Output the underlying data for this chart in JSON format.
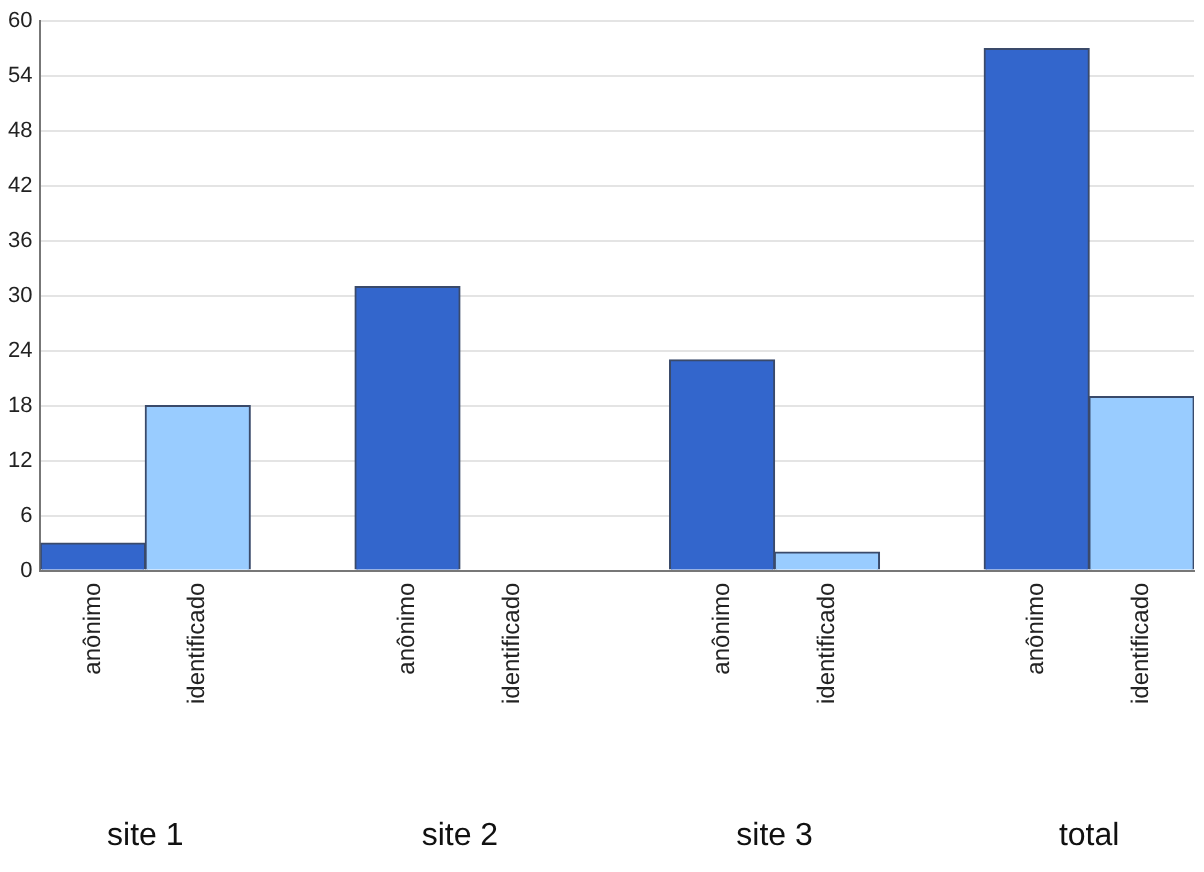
{
  "chart_data": {
    "type": "bar",
    "categories": [
      "anônimo",
      "identificado",
      null,
      "anônimo",
      "identificado",
      null,
      "anônimo",
      "identificado",
      null,
      "anônimo",
      "identificado"
    ],
    "values": [
      3,
      18,
      null,
      31,
      0,
      null,
      23,
      2,
      null,
      57,
      19
    ],
    "colors": [
      "#3366cc",
      "#99ccff",
      null,
      "#3366cc",
      "#99ccff",
      null,
      "#3366cc",
      "#99ccff",
      null,
      "#3366cc",
      "#99ccff"
    ],
    "ylim": [
      0,
      60
    ],
    "yticks": [
      0,
      6,
      12,
      18,
      24,
      30,
      36,
      42,
      48,
      54,
      60
    ],
    "grid": "y",
    "legend": false,
    "annotations": [
      "site 1",
      "site 2",
      "site 3",
      "total"
    ]
  }
}
